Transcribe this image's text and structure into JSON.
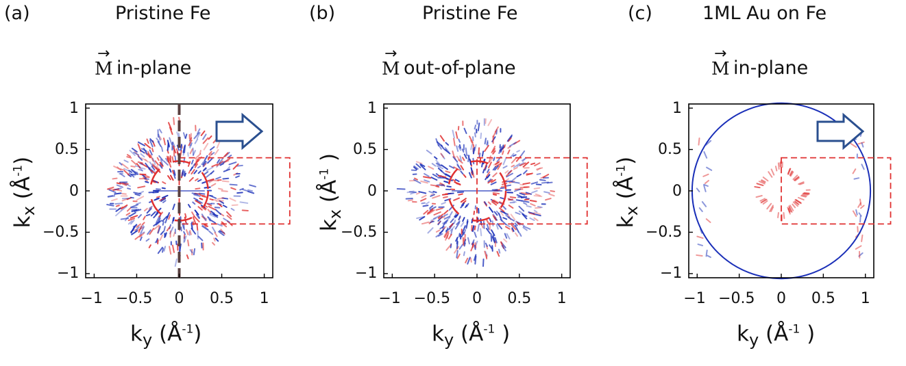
{
  "figure": {
    "panels": [
      {
        "letter": "(a)",
        "title": "Pristine Fe",
        "magnetization": {
          "symbol": "M",
          "orientation": "in-plane"
        },
        "xlabel": {
          "base": "k",
          "sub": "y",
          "open": "(Å",
          "sup": "-1",
          "close": ")"
        },
        "ylabel": {
          "base": "k",
          "sub": "x",
          "open": "(Å",
          "sup": "-1",
          "close": ")"
        },
        "xticks": [
          "−1",
          "−0.5",
          "0",
          "0.5",
          "1"
        ],
        "yticks": [
          "1",
          "0.5",
          "0",
          "−0.5",
          "−1"
        ],
        "xlim": [
          -1.1,
          1.1
        ],
        "ylim": [
          -1.05,
          1.05
        ],
        "features": [
          "magnetization-arrow",
          "dashed-vertical-line",
          "dashed-box"
        ]
      },
      {
        "letter": "(b)",
        "title": "Pristine Fe",
        "magnetization": {
          "symbol": "M",
          "orientation": "out-of-plane"
        },
        "xlabel": {
          "base": "k",
          "sub": "y",
          "open": "(Å",
          "sup": "-1",
          "close": " )"
        },
        "ylabel": {
          "base": "k",
          "sub": "x",
          "open": "(Å",
          "sup": "-1",
          "close": " )"
        },
        "xticks": [
          "−1",
          "−0.5",
          "0",
          "0.5",
          "1"
        ],
        "yticks": [
          "1",
          "0.5",
          "0",
          "−0.5",
          "−1"
        ],
        "xlim": [
          -1.1,
          1.1
        ],
        "ylim": [
          -1.05,
          1.05
        ],
        "features": [
          "dashed-box"
        ]
      },
      {
        "letter": "(c)",
        "title": "1ML Au on Fe",
        "magnetization": {
          "symbol": "M",
          "orientation": "in-plane"
        },
        "xlabel": {
          "base": "k",
          "sub": "y",
          "open": "(Å",
          "sup": "-1",
          "close": " )"
        },
        "ylabel": {
          "base": "k",
          "sub": "x",
          "open": "(Å",
          "sup": "-1",
          "close": ")"
        },
        "xticks": [
          "−1",
          "−0.5",
          "0",
          "0.5",
          "1"
        ],
        "yticks": [
          "1",
          "0.5",
          "0",
          "−0.5",
          "−1"
        ],
        "xlim": [
          -1.1,
          1.1
        ],
        "ylim": [
          -1.05,
          1.05
        ],
        "features": [
          "magnetization-arrow",
          "dashed-box",
          "circular-contour"
        ]
      }
    ],
    "colors": {
      "positive": "#e03030",
      "negative": "#1a2fb8",
      "box": "#e03030",
      "arrow": "#2a4f8f",
      "dashline": "#5a4040"
    }
  }
}
